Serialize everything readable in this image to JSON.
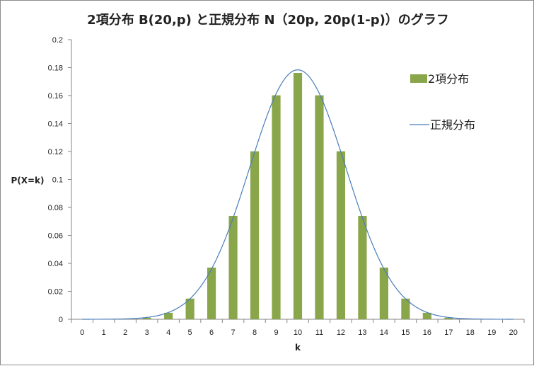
{
  "chart_data": {
    "type": "bar",
    "title": "2項分布 B(20,p) と正規分布 N（20p, 20p(1-p)）のグラフ",
    "xlabel": "k",
    "ylabel": "P(X=k)",
    "categories": [
      "0",
      "1",
      "2",
      "3",
      "4",
      "5",
      "6",
      "7",
      "8",
      "9",
      "10",
      "11",
      "12",
      "13",
      "14",
      "15",
      "16",
      "17",
      "18",
      "19",
      "20"
    ],
    "y_ticks": [
      "0",
      "0.02",
      "0.04",
      "0.06",
      "0.08",
      "0.1",
      "0.12",
      "0.14",
      "0.16",
      "0.18",
      "0.2"
    ],
    "ylim": [
      0,
      0.2
    ],
    "grid": false,
    "legend_position": "right",
    "series": [
      {
        "name": "2項分布",
        "type": "bar",
        "color": "#8aa64a",
        "values": [
          1e-06,
          1.9e-05,
          0.000181,
          0.001087,
          0.004621,
          0.014786,
          0.036964,
          0.073929,
          0.120134,
          0.160179,
          0.176197,
          0.160179,
          0.120134,
          0.073929,
          0.036964,
          0.014786,
          0.004621,
          0.001087,
          0.000181,
          1.9e-05,
          1e-06
        ]
      },
      {
        "name": "正規分布",
        "type": "line",
        "color": "#4a7ebb",
        "mean": 10,
        "variance": 5
      }
    ]
  }
}
